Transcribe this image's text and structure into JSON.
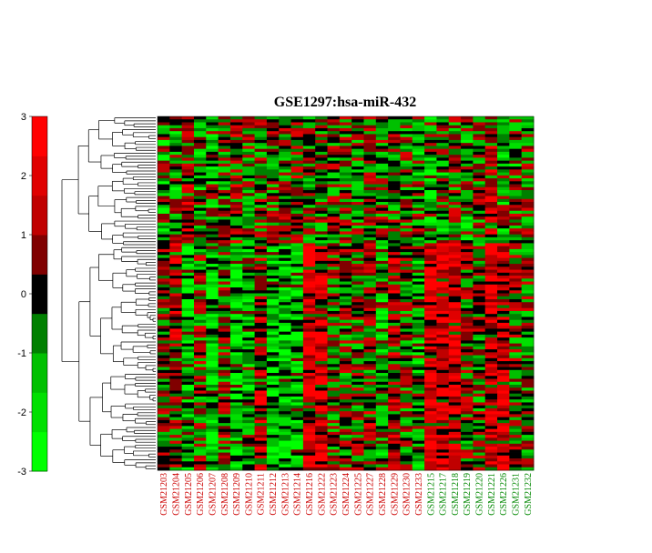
{
  "chart_data": {
    "type": "heatmap",
    "title": "GSE1297:hsa-miR-432",
    "colorbar": {
      "min": -3,
      "max": 3,
      "tick_labels": [
        "3",
        "2",
        "1",
        "0",
        "-1",
        "-2",
        "-3"
      ],
      "colors": [
        "#00ff00",
        "#00e000",
        "#00c000",
        "#008000",
        "#000000",
        "#800000",
        "#c00000",
        "#e00000",
        "#ff0000"
      ]
    },
    "row_dendrogram": true,
    "columns": [
      {
        "label": "GSM21203",
        "color": "#cc0000"
      },
      {
        "label": "GSM21204",
        "color": "#cc0000"
      },
      {
        "label": "GSM21205",
        "color": "#cc0000"
      },
      {
        "label": "GSM21206",
        "color": "#cc0000"
      },
      {
        "label": "GSM21207",
        "color": "#cc0000"
      },
      {
        "label": "GSM21208",
        "color": "#cc0000"
      },
      {
        "label": "GSM21209",
        "color": "#cc0000"
      },
      {
        "label": "GSM21210",
        "color": "#cc0000"
      },
      {
        "label": "GSM21211",
        "color": "#cc0000"
      },
      {
        "label": "GSM21212",
        "color": "#cc0000"
      },
      {
        "label": "GSM21213",
        "color": "#cc0000"
      },
      {
        "label": "GSM21214",
        "color": "#cc0000"
      },
      {
        "label": "GSM21216",
        "color": "#cc0000"
      },
      {
        "label": "GSM21222",
        "color": "#cc0000"
      },
      {
        "label": "GSM21223",
        "color": "#cc0000"
      },
      {
        "label": "GSM21224",
        "color": "#cc0000"
      },
      {
        "label": "GSM21225",
        "color": "#cc0000"
      },
      {
        "label": "GSM21227",
        "color": "#cc0000"
      },
      {
        "label": "GSM21228",
        "color": "#cc0000"
      },
      {
        "label": "GSM21229",
        "color": "#cc0000"
      },
      {
        "label": "GSM21230",
        "color": "#cc0000"
      },
      {
        "label": "GSM21233",
        "color": "#cc0000"
      },
      {
        "label": "GSM21215",
        "color": "#008800"
      },
      {
        "label": "GSM21217",
        "color": "#008800"
      },
      {
        "label": "GSM21218",
        "color": "#008800"
      },
      {
        "label": "GSM21219",
        "color": "#008800"
      },
      {
        "label": "GSM21220",
        "color": "#008800"
      },
      {
        "label": "GSM21221",
        "color": "#008800"
      },
      {
        "label": "GSM21226",
        "color": "#008800"
      },
      {
        "label": "GSM21231",
        "color": "#008800"
      },
      {
        "label": "GSM21232",
        "color": "#008800"
      }
    ]
  }
}
